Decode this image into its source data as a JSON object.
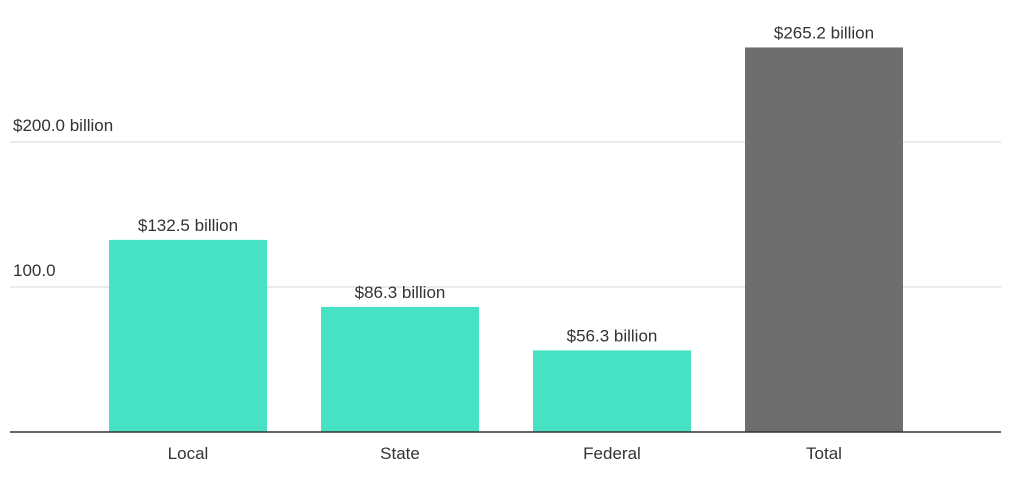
{
  "chart_data": {
    "type": "bar",
    "title": "",
    "xlabel": "",
    "ylabel": "",
    "categories": [
      "Local",
      "State",
      "Federal",
      "Total"
    ],
    "values": [
      132.5,
      86.3,
      56.3,
      265.2
    ],
    "data_labels": [
      "$132.5 billion",
      "$86.3 billion",
      "$56.3 billion",
      "$265.2 billion"
    ],
    "colors": [
      "#46e2c3",
      "#46e2c3",
      "#46e2c3",
      "#6e6e6e"
    ],
    "ylim": [
      0,
      265.2
    ],
    "yticks": [
      {
        "value": 100,
        "label": "100.0"
      },
      {
        "value": 200,
        "label": "$200.0 billion"
      }
    ],
    "grid": true,
    "legend": "none"
  }
}
